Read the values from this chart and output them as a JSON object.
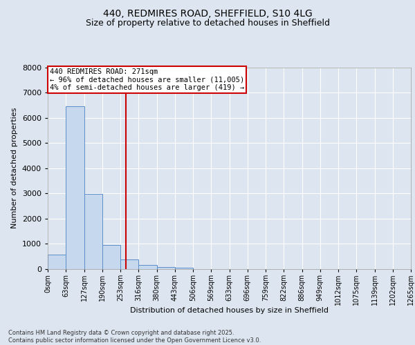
{
  "title_line1": "440, REDMIRES ROAD, SHEFFIELD, S10 4LG",
  "title_line2": "Size of property relative to detached houses in Sheffield",
  "xlabel": "Distribution of detached houses by size in Sheffield",
  "ylabel": "Number of detached properties",
  "footer_line1": "Contains HM Land Registry data © Crown copyright and database right 2025.",
  "footer_line2": "Contains public sector information licensed under the Open Government Licence v3.0.",
  "annotation_line1": "440 REDMIRES ROAD: 271sqm",
  "annotation_line2": "← 96% of detached houses are smaller (11,005)",
  "annotation_line3": "4% of semi-detached houses are larger (419) →",
  "bar_values": [
    580,
    6450,
    2980,
    970,
    370,
    155,
    85,
    45,
    10,
    5,
    3,
    2,
    1,
    1,
    0,
    0,
    0,
    0,
    0,
    0
  ],
  "bin_labels": [
    "0sqm",
    "63sqm",
    "127sqm",
    "190sqm",
    "253sqm",
    "316sqm",
    "380sqm",
    "443sqm",
    "506sqm",
    "569sqm",
    "633sqm",
    "696sqm",
    "759sqm",
    "822sqm",
    "886sqm",
    "949sqm",
    "1012sqm",
    "1075sqm",
    "1139sqm",
    "1202sqm",
    "1265sqm"
  ],
  "bar_color": "#c5d8ed",
  "bar_edge_color": "#5b8dc8",
  "bar_edge_width": 0.7,
  "ylim": [
    0,
    8000
  ],
  "yticks": [
    0,
    1000,
    2000,
    3000,
    4000,
    5000,
    6000,
    7000,
    8000
  ],
  "background_color": "#dde6f0",
  "grid_color": "#ffffff",
  "annotation_box_facecolor": "#ffffff",
  "annotation_box_edgecolor": "#cc0000",
  "redline_color": "#cc0000",
  "redline_x": 4.286,
  "title_fontsize": 10,
  "subtitle_fontsize": 9,
  "ylabel_fontsize": 8,
  "xlabel_fontsize": 8,
  "ytick_fontsize": 8,
  "xtick_fontsize": 7,
  "footer_fontsize": 6,
  "ann_fontsize": 7.5
}
